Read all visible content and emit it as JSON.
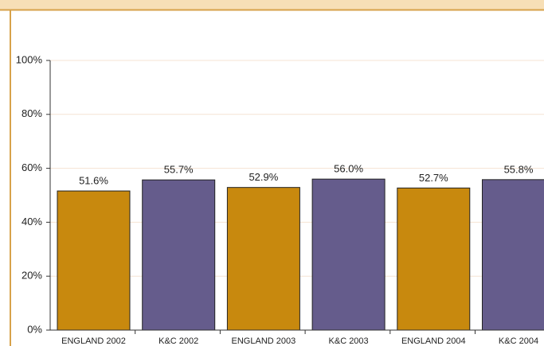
{
  "chart_data": {
    "type": "bar",
    "categories": [
      "ENGLAND 2002",
      "K&C 2002",
      "ENGLAND 2003",
      "K&C 2003",
      "ENGLAND 2004",
      "K&C 2004"
    ],
    "values": [
      51.6,
      55.7,
      52.9,
      56.0,
      52.7,
      55.8
    ],
    "value_labels": [
      "51.6%",
      "55.7%",
      "52.9%",
      "56.0%",
      "52.7%",
      "55.8%"
    ],
    "colors": [
      "#c8890e",
      "#655c8c",
      "#c8890e",
      "#655c8c",
      "#c8890e",
      "#655c8c"
    ],
    "ylim": [
      0,
      100
    ],
    "yticks": [
      {
        "value": 0,
        "label": "0%"
      },
      {
        "value": 20,
        "label": "20%"
      },
      {
        "value": 40,
        "label": "40%"
      },
      {
        "value": 60,
        "label": "60%"
      },
      {
        "value": 80,
        "label": "80%"
      },
      {
        "value": 100,
        "label": "100%"
      }
    ],
    "grid": true
  }
}
